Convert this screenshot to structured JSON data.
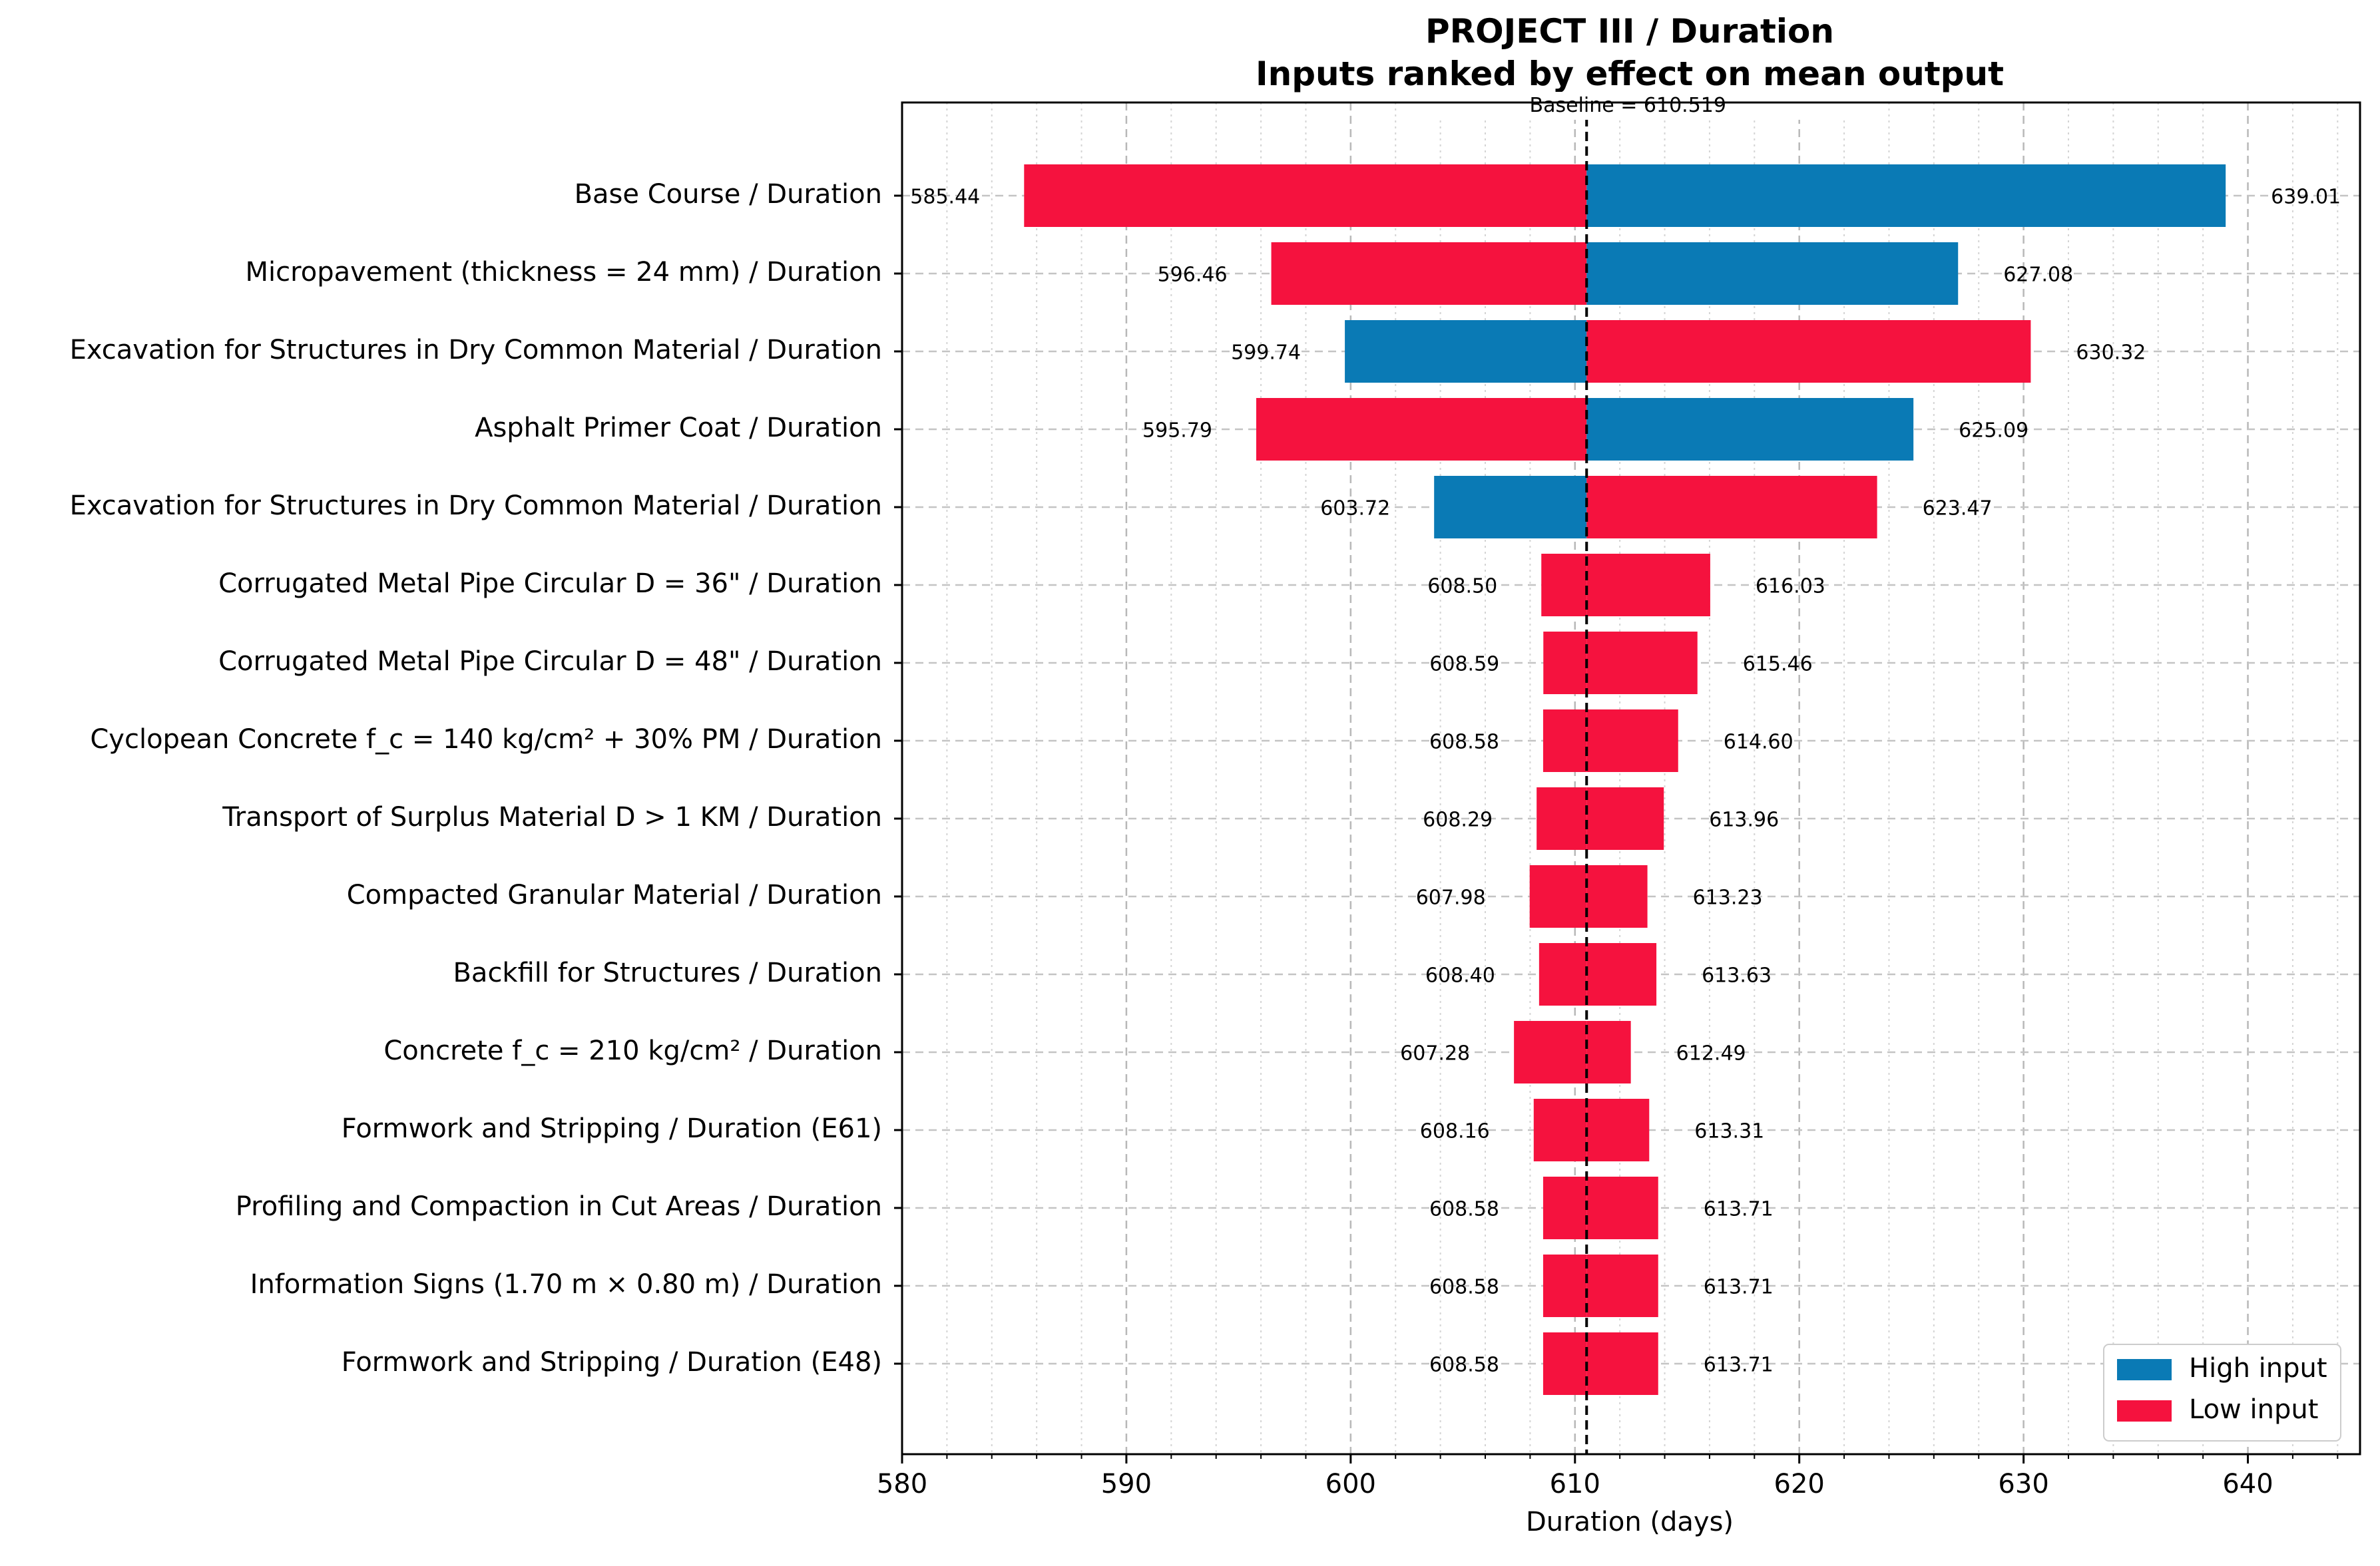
{
  "chart_data": {
    "type": "bar",
    "orientation": "horizontal",
    "title_lines": [
      "PROJECT III / Duration",
      "Inputs ranked by effect on mean output"
    ],
    "baseline_label": "Baseline = 610.519",
    "baseline": 610.519,
    "xlabel": "Duration (days)",
    "xlim": [
      580,
      645
    ],
    "xticks": [
      580,
      590,
      600,
      610,
      620,
      630,
      640
    ],
    "grid": true,
    "legend_position": "lower-right",
    "legend": [
      {
        "name": "High input",
        "color": "#0a7ab5"
      },
      {
        "name": "Low input",
        "color": "#f5123e"
      }
    ],
    "categories": [
      "Base Course / Duration",
      "Micropavement (thickness = 24 mm) / Duration",
      "Excavation for Structures in Dry Common Material / Duration",
      "Asphalt Primer Coat / Duration",
      "Excavation for Structures in Dry Common Material / Duration",
      "Corrugated Metal Pipe Circular D = 36\" / Duration",
      "Corrugated Metal Pipe Circular D = 48\" / Duration",
      "Cyclopean Concrete f_c = 140 kg/cm² + 30% PM / Duration",
      "Transport of Surplus Material D > 1 KM / Duration",
      "Compacted Granular Material / Duration",
      "Backfill for Structures / Duration",
      "Concrete f_c = 210 kg/cm² / Duration",
      "Formwork and Stripping / Duration (E61)",
      "Profiling and Compaction in Cut Areas / Duration",
      "Information Signs (1.70 m × 0.80 m) / Duration",
      "Formwork and Stripping / Duration (E48)"
    ],
    "low_values": [
      585.44,
      596.46,
      599.74,
      595.79,
      603.72,
      608.5,
      608.59,
      608.58,
      608.29,
      607.98,
      608.4,
      607.28,
      608.16,
      608.58,
      608.58,
      608.58
    ],
    "low_labels": [
      "585.44",
      "596.46",
      "599.74",
      "595.79",
      "603.72",
      "608.50",
      "608.59",
      "608.58",
      "608.29",
      "607.98",
      "608.40",
      "607.28",
      "608.16",
      "608.58",
      "608.58",
      "608.58"
    ],
    "high_values": [
      639.01,
      627.08,
      630.32,
      625.09,
      623.47,
      616.03,
      615.46,
      614.6,
      613.96,
      613.23,
      613.63,
      612.49,
      613.31,
      613.71,
      613.71,
      613.71
    ],
    "high_labels": [
      "639.01",
      "627.08",
      "630.32",
      "625.09",
      "623.47",
      "616.03",
      "615.46",
      "614.60",
      "613.96",
      "613.23",
      "613.63",
      "612.49",
      "613.31",
      "613.71",
      "613.71",
      "613.71"
    ],
    "left_segment_input": [
      "Low",
      "Low",
      "High",
      "Low",
      "High",
      "Low",
      "Low",
      "Low",
      "Low",
      "Low",
      "Low",
      "Low",
      "Low",
      "Low",
      "Low",
      "Low"
    ],
    "right_segment_input": [
      "High",
      "High",
      "Low",
      "High",
      "Low",
      "Low",
      "Low",
      "Low",
      "Low",
      "Low",
      "Low",
      "Low",
      "Low",
      "Low",
      "Low",
      "Low"
    ],
    "colors": {
      "high": "#0a7ab5",
      "low": "#f5123e"
    }
  }
}
